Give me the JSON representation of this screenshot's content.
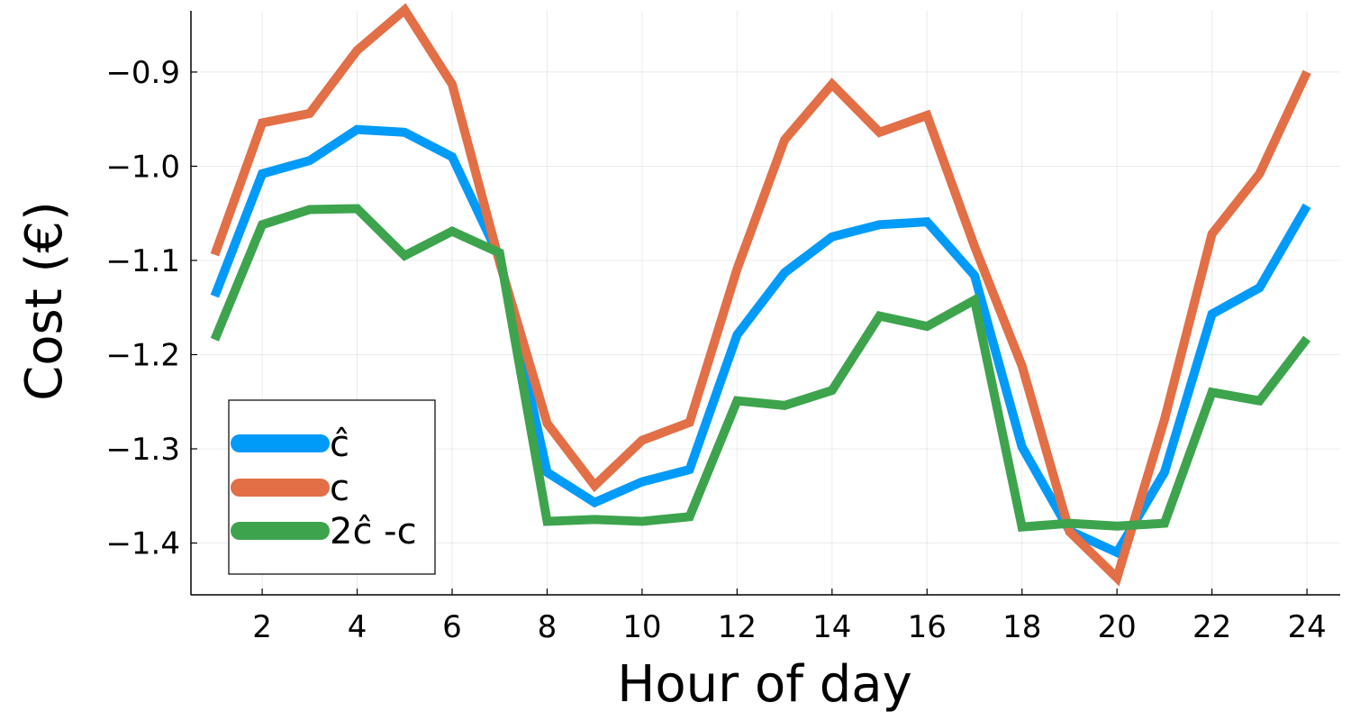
{
  "chart_data": {
    "type": "line",
    "title": "",
    "xlabel": "Hour of day",
    "ylabel": "Cost (€)",
    "xlim": [
      0.5,
      24.7
    ],
    "ylim": [
      -1.455,
      -0.835
    ],
    "x_ticks": [
      2,
      4,
      6,
      8,
      10,
      12,
      14,
      16,
      18,
      20,
      22,
      24
    ],
    "x_tick_labels": [
      "2",
      "4",
      "6",
      "8",
      "10",
      "12",
      "14",
      "16",
      "18",
      "20",
      "22",
      "24"
    ],
    "y_ticks": [
      -1.4,
      -1.3,
      -1.2,
      -1.1,
      -1.0,
      -0.9
    ],
    "y_tick_labels": [
      "−1.4",
      "−1.3",
      "−1.2",
      "−1.1",
      "−1.0",
      "−0.9"
    ],
    "grid": true,
    "legend_position": "bottom-left",
    "x": [
      1,
      2,
      3,
      4,
      5,
      6,
      7,
      8,
      9,
      10,
      11,
      12,
      13,
      14,
      15,
      16,
      17,
      18,
      19,
      20,
      21,
      22,
      23,
      24
    ],
    "series": [
      {
        "name": "ĉ",
        "color": "#009af9",
        "values": [
          -1.138,
          -1.008,
          -0.994,
          -0.961,
          -0.964,
          -0.99,
          -1.097,
          -1.325,
          -1.357,
          -1.335,
          -1.322,
          -1.179,
          -1.113,
          -1.075,
          -1.062,
          -1.059,
          -1.116,
          -1.298,
          -1.387,
          -1.41,
          -1.325,
          -1.157,
          -1.129,
          -1.042
        ]
      },
      {
        "name": "c",
        "color": "#e26f46",
        "values": [
          -1.094,
          -0.954,
          -0.944,
          -0.877,
          -0.834,
          -0.913,
          -1.102,
          -1.273,
          -1.339,
          -1.291,
          -1.272,
          -1.109,
          -0.972,
          -0.913,
          -0.964,
          -0.946,
          -1.085,
          -1.212,
          -1.388,
          -1.437,
          -1.269,
          -1.072,
          -1.008,
          -0.9
        ]
      },
      {
        "name": "2ĉ -c",
        "color": "#3da44d",
        "values": [
          -1.184,
          -1.062,
          -1.046,
          -1.045,
          -1.095,
          -1.069,
          -1.092,
          -1.377,
          -1.375,
          -1.377,
          -1.372,
          -1.249,
          -1.254,
          -1.238,
          -1.159,
          -1.17,
          -1.142,
          -1.383,
          -1.379,
          -1.382,
          -1.379,
          -1.24,
          -1.249,
          -1.183
        ]
      }
    ]
  }
}
